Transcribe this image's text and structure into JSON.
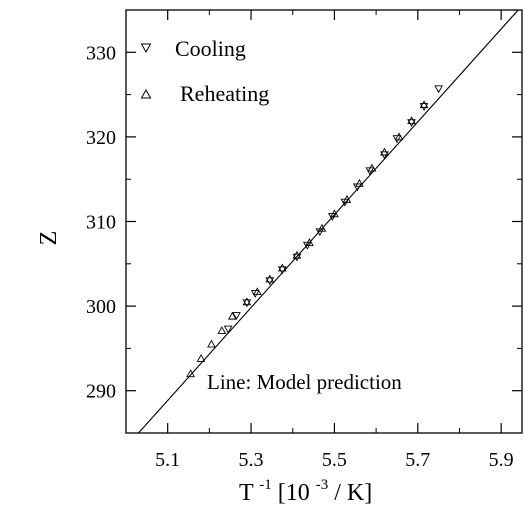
{
  "chart_data": {
    "type": "scatter",
    "xlabel_base": "T",
    "xlabel_exp": "-1",
    "xlabel_unit_open": "[10",
    "xlabel_unit_exp": "-3",
    "xlabel_unit_close": "/ K]",
    "ylabel": "Z",
    "xlim": [
      5.0,
      5.95
    ],
    "ylim": [
      285,
      335
    ],
    "xticks": [
      "5.1",
      "5.3",
      "5.5",
      "5.7",
      "5.9"
    ],
    "yticks": [
      "290",
      "300",
      "310",
      "320",
      "330"
    ],
    "grid": false,
    "legend_position": "top-left",
    "annotation": "Line: Model prediction",
    "series": [
      {
        "name": "Cooling",
        "marker": "triangle-down",
        "x": [
          5.245,
          5.265,
          5.29,
          5.31,
          5.345,
          5.375,
          5.41,
          5.435,
          5.465,
          5.495,
          5.525,
          5.555,
          5.585,
          5.62,
          5.65,
          5.685,
          5.715,
          5.75
        ],
        "y": [
          297.3,
          298.9,
          300.4,
          301.5,
          303.0,
          304.3,
          305.8,
          307.2,
          308.8,
          310.6,
          312.3,
          314.1,
          316.0,
          317.9,
          319.8,
          321.7,
          323.6,
          325.7
        ]
      },
      {
        "name": "Reheating",
        "marker": "triangle-up",
        "x": [
          5.155,
          5.18,
          5.205,
          5.23,
          5.255,
          5.29,
          5.315,
          5.345,
          5.375,
          5.41,
          5.44,
          5.47,
          5.5,
          5.53,
          5.56,
          5.59,
          5.62,
          5.655,
          5.685,
          5.715
        ],
        "y": [
          292.0,
          293.8,
          295.5,
          297.1,
          298.8,
          300.5,
          301.7,
          303.2,
          304.5,
          306.0,
          307.5,
          309.2,
          310.9,
          312.6,
          314.5,
          316.3,
          318.2,
          320.0,
          321.9,
          323.8
        ]
      }
    ],
    "line": {
      "x": [
        5.03,
        5.95
      ],
      "y": [
        285.0,
        335.5
      ]
    }
  }
}
